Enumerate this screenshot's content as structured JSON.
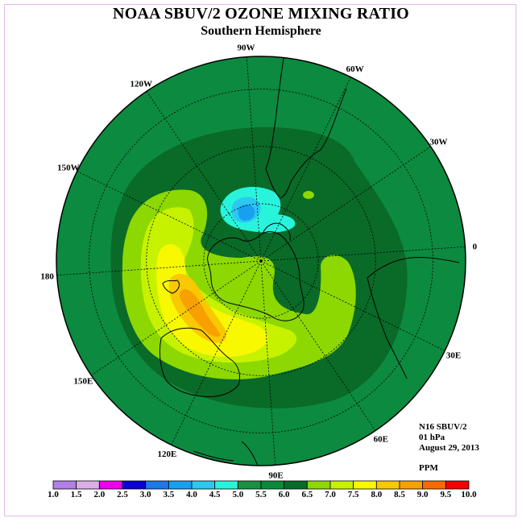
{
  "title": "NOAA SBUV/2 OZONE MIXING RATIO",
  "subtitle": "Southern Hemisphere",
  "longitude_labels": [
    "90W",
    "60W",
    "30W",
    "0",
    "30E",
    "60E",
    "90E",
    "120E",
    "150E",
    "180",
    "150W",
    "120W"
  ],
  "info": {
    "instrument": "N16 SBUV/2",
    "level": "01 hPa",
    "date": "August 29, 2013",
    "units": "PPM"
  },
  "colorbar": {
    "labels": [
      "1.0",
      "1.5",
      "2.0",
      "2.5",
      "3.0",
      "3.5",
      "4.0",
      "4.5",
      "5.0",
      "5.5",
      "6.0",
      "6.5",
      "7.0",
      "7.5",
      "8.0",
      "8.5",
      "9.0",
      "9.5",
      "10.0"
    ],
    "colors": [
      "#b27ee8",
      "#dcaee8",
      "#ee00ee",
      "#0a00d8",
      "#1e78e8",
      "#18a0f0",
      "#2cc8f0",
      "#28f4dc",
      "#1a9040",
      "#0a8a38",
      "#0a6a28",
      "#8cd800",
      "#c6f200",
      "#f8f800",
      "#f8c800",
      "#f8a000",
      "#f86a00",
      "#f80000",
      "#7a4a28"
    ],
    "note": "colors list one per interval"
  },
  "legend_colors": {
    "background_fill": "#0c8a40",
    "band_5_5_to_6": "#0a6a28",
    "band_5_to_5_5": "#0c8a40",
    "band_6_to_6_5": "#8cd800",
    "band_6_5_to_7": "#c6f200",
    "band_7_to_7_5": "#f8f800",
    "band_7_5_to_8": "#f8c800",
    "band_8_to_8_5": "#f8a000",
    "band_4_5_to_5": "#28f4dc",
    "band_4_to_4_5": "#2cc8f0",
    "band_3_5_to_4": "#18a0f0"
  }
}
